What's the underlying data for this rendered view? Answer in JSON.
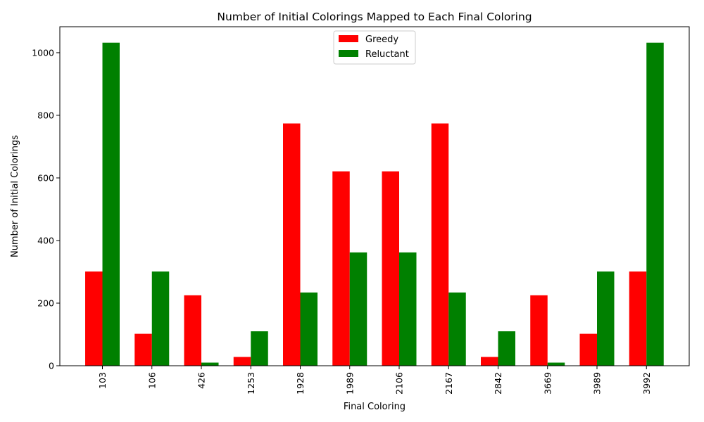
{
  "chart_data": {
    "type": "bar",
    "title": "Number of Initial Colorings Mapped to Each Final Coloring",
    "xlabel": "Final Coloring",
    "ylabel": "Number of Initial Colorings",
    "categories": [
      "103",
      "106",
      "426",
      "1253",
      "1928",
      "1989",
      "2106",
      "2167",
      "2842",
      "3669",
      "3989",
      "3992"
    ],
    "series": [
      {
        "name": "Greedy",
        "color": "#ff0000",
        "values": [
          301,
          102,
          225,
          28,
          774,
          621,
          621,
          774,
          28,
          225,
          102,
          301
        ]
      },
      {
        "name": "Reluctant",
        "color": "#008000",
        "values": [
          1032,
          301,
          10,
          110,
          234,
          362,
          362,
          234,
          110,
          10,
          301,
          1032
        ]
      }
    ],
    "ylim": [
      0,
      1083
    ],
    "yticks": [
      0,
      200,
      400,
      600,
      800,
      1000
    ],
    "grid": false,
    "legend_position": "top-center"
  }
}
